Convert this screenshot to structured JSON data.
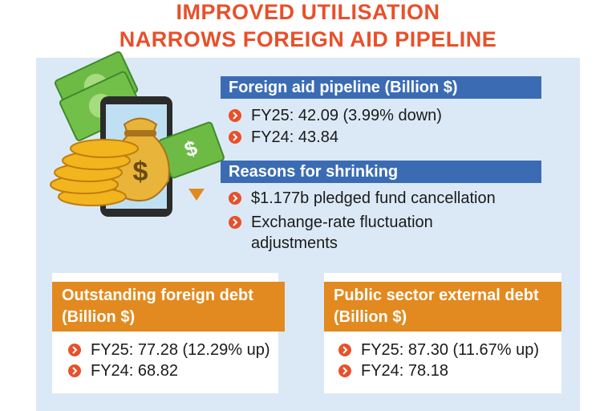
{
  "header": {
    "title_lines": [
      "IMPROVED UTILISATION",
      "NARROWS FOREIGN AID PIPELINE"
    ]
  },
  "sections": [
    {
      "heading": "Foreign aid pipeline (Billion $)",
      "items": [
        "FY25: 42.09 (3.99% down)",
        "FY24: 43.84"
      ]
    },
    {
      "heading": "Reasons for shrinking",
      "items": [
        "$1.177b pledged fund cancellation",
        "Exchange-rate fluctuation adjustments"
      ]
    }
  ],
  "boxes": [
    {
      "heading": "Outstanding foreign debt (Billion $)",
      "items": [
        "FY25: 77.28 (12.29% up)",
        "FY24: 68.82"
      ]
    },
    {
      "heading": "Public sector external debt (Billion $)",
      "items": [
        "FY25: 87.30 (11.67% up)",
        "FY24: 78.18"
      ]
    }
  ]
}
